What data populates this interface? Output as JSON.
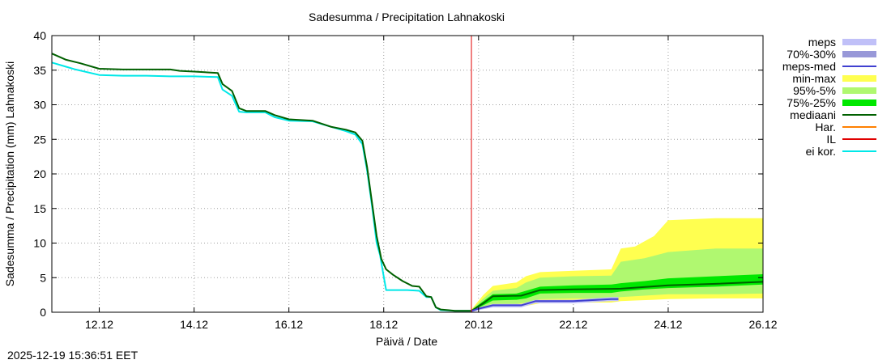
{
  "chart_data": {
    "type": "area",
    "title": "Sadesumma / Precipitation  Lahnakoski",
    "xlabel": "Päivä / Date",
    "ylabel": "Sadesumma / Precipitation (mm)  Lahnakoski",
    "xlim": [
      11,
      26
    ],
    "ylim": [
      0,
      40
    ],
    "x_ticks": [
      12,
      14,
      16,
      18,
      20,
      22,
      24,
      26
    ],
    "x_tick_labels": [
      "12.12",
      "14.12",
      "16.12",
      "18.12",
      "20.12",
      "22.12",
      "24.12",
      "26.12"
    ],
    "y_ticks": [
      0,
      5,
      10,
      15,
      20,
      25,
      30,
      35,
      40
    ],
    "y_tick_labels": [
      "0",
      "5",
      "10",
      "15",
      "20",
      "25",
      "30",
      "35",
      "40"
    ],
    "grid": true,
    "legend_position": "right",
    "forecast_start": 19.85,
    "series": [
      {
        "name": "meps",
        "color": "#c0c0f8",
        "x": [
          19.85,
          20.0,
          20.3,
          20.9,
          21.2,
          22.0,
          22.8,
          22.95
        ],
        "y": [
          0.2,
          0.6,
          1.2,
          1.2,
          1.8,
          1.8,
          2.2,
          2.2
        ]
      },
      {
        "name": "70%-30%",
        "color": "#9898d8",
        "x": [
          19.85,
          20.0,
          20.3,
          20.9,
          21.2,
          22.0,
          22.8,
          22.95
        ],
        "y_low": [
          0.2,
          0.5,
          0.9,
          0.9,
          1.5,
          1.5,
          1.8,
          1.8
        ],
        "y_high": [
          0.3,
          0.7,
          1.1,
          1.1,
          1.7,
          1.7,
          2.0,
          2.0
        ]
      },
      {
        "name": "meps-med",
        "color": "#4040d0",
        "x": [
          19.85,
          20.0,
          20.3,
          20.9,
          21.2,
          22.0,
          22.8,
          22.95
        ],
        "y": [
          0.2,
          0.5,
          1.0,
          1.0,
          1.6,
          1.6,
          1.9,
          1.9
        ]
      },
      {
        "name": "min-max",
        "color": "#ffff50",
        "x": [
          19.85,
          20.1,
          20.3,
          20.8,
          21.0,
          21.3,
          22.0,
          22.8,
          23.0,
          23.3,
          23.7,
          24.0,
          25.0,
          26.0
        ],
        "y_low": [
          0.1,
          0.6,
          0.9,
          0.9,
          0.9,
          1.3,
          1.4,
          1.4,
          1.6,
          1.7,
          1.8,
          1.9,
          2.0,
          2.0
        ],
        "y_high": [
          0.4,
          2.5,
          3.8,
          4.3,
          5.2,
          5.8,
          6.0,
          6.2,
          9.2,
          9.5,
          11.0,
          13.3,
          13.6,
          13.6
        ]
      },
      {
        "name": "95%-5%",
        "color": "#b0f870",
        "x": [
          19.85,
          20.1,
          20.3,
          20.8,
          21.0,
          21.3,
          22.0,
          22.8,
          23.0,
          23.5,
          24.0,
          25.0,
          26.0
        ],
        "y_low": [
          0.2,
          0.8,
          1.2,
          1.2,
          1.4,
          1.9,
          2.0,
          2.0,
          2.2,
          2.4,
          2.6,
          2.6,
          2.7
        ],
        "y_high": [
          0.3,
          2.0,
          3.1,
          3.5,
          4.3,
          5.0,
          5.2,
          5.3,
          7.3,
          7.8,
          8.7,
          9.2,
          9.2
        ]
      },
      {
        "name": "75%-25%",
        "color": "#00e800",
        "x": [
          19.85,
          20.1,
          20.3,
          20.8,
          21.0,
          21.3,
          22.0,
          22.8,
          23.0,
          23.5,
          24.0,
          25.0,
          26.0
        ],
        "y_low": [
          0.2,
          1.0,
          1.7,
          1.8,
          2.0,
          2.7,
          2.8,
          2.8,
          3.0,
          3.3,
          3.5,
          3.7,
          4.0
        ],
        "y_high": [
          0.3,
          1.6,
          2.6,
          2.7,
          3.1,
          3.7,
          3.9,
          4.0,
          4.2,
          4.5,
          4.9,
          5.2,
          5.5
        ]
      },
      {
        "name": "mediaani",
        "color": "#006000",
        "x": [
          11.0,
          11.3,
          11.6,
          12.0,
          12.5,
          13.0,
          13.5,
          13.7,
          14.0,
          14.5,
          14.6,
          14.8,
          14.95,
          15.1,
          15.5,
          15.7,
          16.0,
          16.5,
          16.9,
          17.2,
          17.4,
          17.55,
          17.65,
          17.75,
          17.85,
          17.95,
          18.05,
          18.2,
          18.4,
          18.6,
          18.75,
          18.9,
          19.0,
          19.1,
          19.2,
          19.35,
          19.5,
          19.85,
          20.1,
          20.3,
          20.9,
          21.3,
          22.0,
          23.0,
          24.0,
          25.0,
          26.0
        ],
        "y": [
          37.4,
          36.5,
          36.0,
          35.2,
          35.1,
          35.1,
          35.1,
          34.9,
          34.8,
          34.6,
          33.0,
          32.0,
          29.5,
          29.1,
          29.1,
          28.5,
          27.9,
          27.7,
          26.8,
          26.4,
          26.0,
          24.8,
          21.0,
          16.0,
          11.0,
          7.7,
          6.2,
          5.4,
          4.5,
          3.8,
          3.7,
          2.3,
          2.2,
          0.7,
          0.4,
          0.3,
          0.2,
          0.2,
          1.3,
          2.3,
          2.4,
          3.2,
          3.3,
          3.4,
          3.9,
          4.1,
          4.4
        ]
      },
      {
        "name": "Har.",
        "color": "#ff8000",
        "x": [],
        "y": []
      },
      {
        "name": "IL",
        "color": "#e00000",
        "x": [
          19.85,
          19.85
        ],
        "y": [
          0,
          40
        ]
      },
      {
        "name": "ei kor.",
        "color": "#00e8e8",
        "x": [
          11.0,
          11.3,
          11.5,
          12.0,
          12.5,
          13.0,
          13.5,
          14.0,
          14.5,
          14.6,
          14.8,
          14.95,
          15.1,
          15.5,
          15.7,
          16.0,
          16.5,
          16.9,
          17.2,
          17.4,
          17.55,
          17.65,
          17.75,
          17.85,
          17.92,
          18.0,
          18.05,
          18.5,
          18.75,
          18.9,
          19.0,
          19.1,
          19.2,
          19.5,
          19.85
        ],
        "y": [
          36.1,
          35.5,
          35.1,
          34.3,
          34.2,
          34.2,
          34.1,
          34.1,
          34.0,
          32.2,
          31.3,
          29.0,
          28.9,
          28.9,
          28.2,
          27.7,
          27.6,
          26.8,
          26.2,
          25.7,
          24.3,
          20.5,
          15.5,
          10.0,
          8.3,
          5.2,
          3.2,
          3.2,
          3.1,
          2.2,
          2.2,
          0.7,
          0.3,
          0.2,
          0.2
        ]
      }
    ]
  },
  "legend": [
    {
      "label": "meps",
      "color": "#c0c0f8",
      "kind": "box"
    },
    {
      "label": "70%-30%",
      "color": "#9898d8",
      "kind": "box"
    },
    {
      "label": "meps-med",
      "color": "#4040d0",
      "kind": "line"
    },
    {
      "label": "min-max",
      "color": "#ffff50",
      "kind": "box"
    },
    {
      "label": "95%-5%",
      "color": "#b0f870",
      "kind": "box"
    },
    {
      "label": "75%-25%",
      "color": "#00e800",
      "kind": "box"
    },
    {
      "label": "mediaani",
      "color": "#006000",
      "kind": "line"
    },
    {
      "label": "Har.",
      "color": "#ff8000",
      "kind": "line"
    },
    {
      "label": "IL",
      "color": "#e00000",
      "kind": "line"
    },
    {
      "label": "ei kor.",
      "color": "#00e8e8",
      "kind": "line"
    }
  ],
  "footer": {
    "timestamp": "2025-12-19 15:36:51 EET"
  }
}
